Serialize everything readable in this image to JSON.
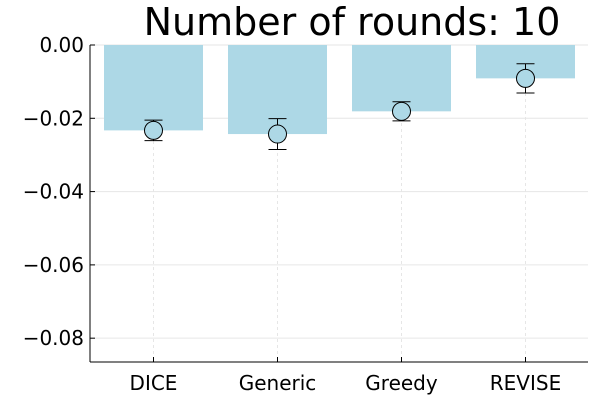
{
  "chart_data": {
    "type": "bar",
    "title": "Number of rounds: 10",
    "categories": [
      "DICE",
      "Generic",
      "Greedy",
      "REVISE"
    ],
    "series": [
      {
        "values": [
          -0.0233,
          -0.0243,
          -0.0181,
          -0.0091
        ]
      }
    ],
    "error_bars": {
      "center": [
        -0.0233,
        -0.0243,
        -0.0181,
        -0.0091
      ],
      "low": [
        -0.0261,
        -0.0285,
        -0.0207,
        -0.0131
      ],
      "high": [
        -0.0205,
        -0.0201,
        -0.0155,
        -0.0051
      ]
    },
    "ylim": [
      -0.0865,
      0.0
    ],
    "yticks": [
      0.0,
      -0.02,
      -0.04,
      -0.06,
      -0.08
    ],
    "ytick_labels": [
      "0.00",
      "−0.02",
      "−0.04",
      "−0.06",
      "−0.08"
    ],
    "grid": true,
    "bar_color": "#add8e6",
    "marker_color": "#add8e6"
  }
}
